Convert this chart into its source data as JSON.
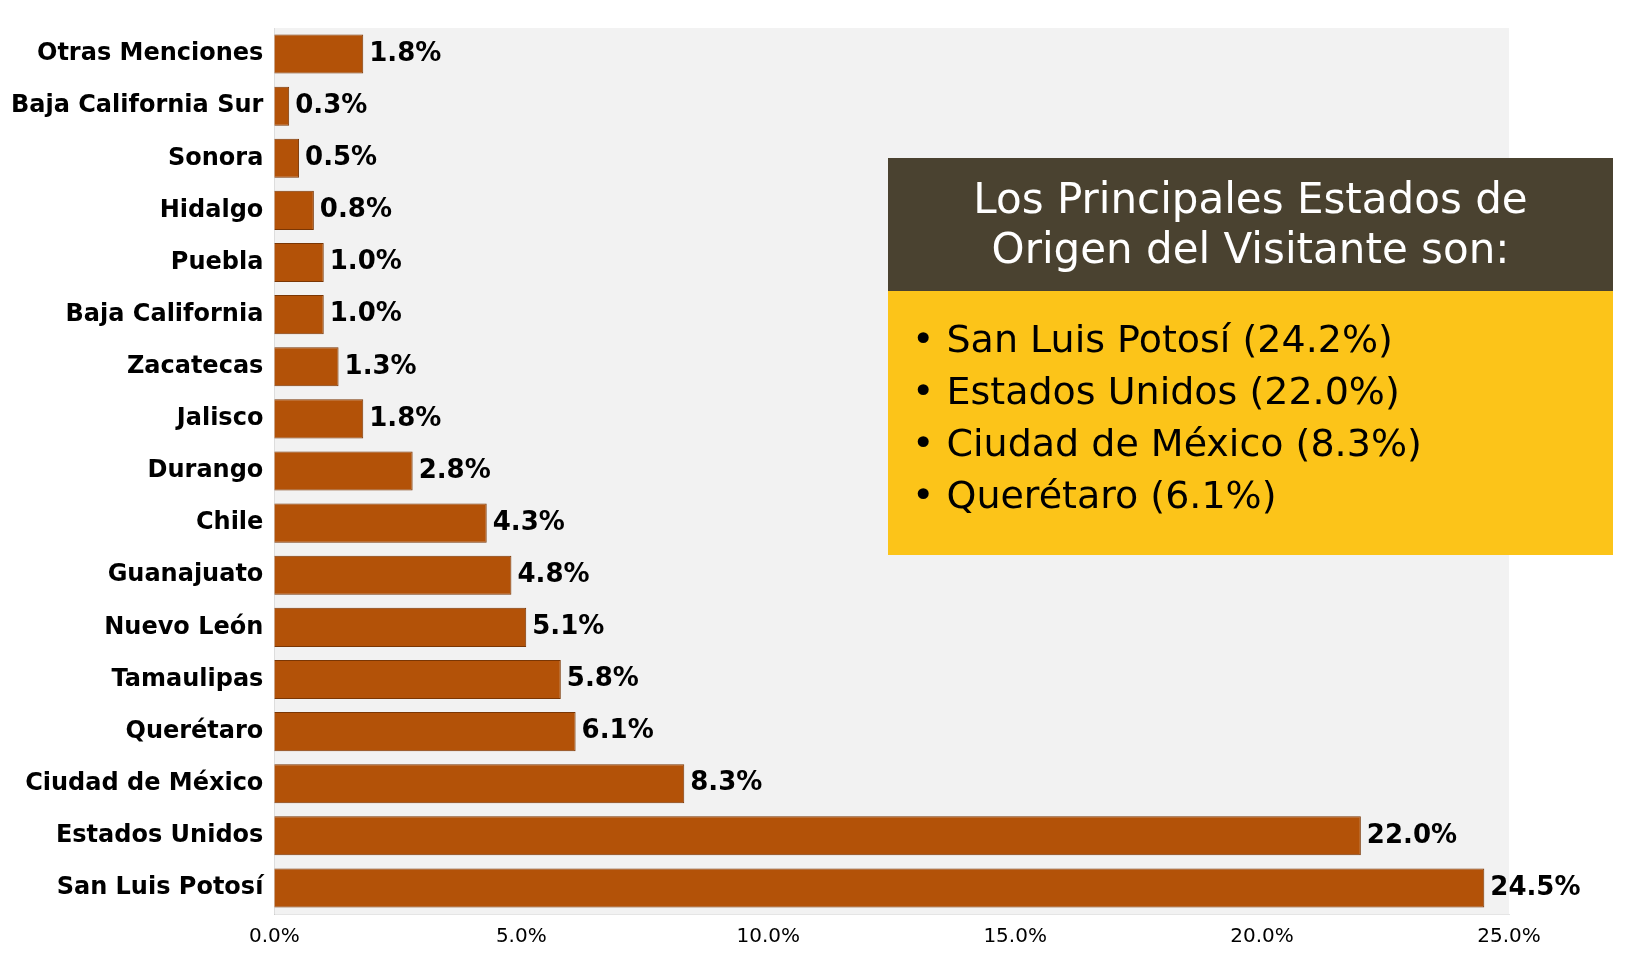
{
  "chart_data": {
    "type": "bar",
    "orientation": "horizontal",
    "categories": [
      "Otras Menciones",
      "Baja California Sur",
      "Sonora",
      "Hidalgo",
      "Puebla",
      "Baja California",
      "Zacatecas",
      "Jalisco",
      "Durango",
      "Chile",
      "Guanajuato",
      "Nuevo León",
      "Tamaulipas",
      "Querétaro",
      "Ciudad de México",
      "Estados Unidos",
      "San Luis Potosí"
    ],
    "values": [
      1.8,
      0.3,
      0.5,
      0.8,
      1.0,
      1.0,
      1.3,
      1.8,
      2.8,
      4.3,
      4.8,
      5.1,
      5.8,
      6.1,
      8.3,
      22.0,
      24.5
    ],
    "value_labels": [
      "1.8%",
      "0.3%",
      "0.5%",
      "0.8%",
      "1.0%",
      "1.0%",
      "1.3%",
      "1.8%",
      "2.8%",
      "4.3%",
      "4.8%",
      "5.1%",
      "5.8%",
      "6.1%",
      "8.3%",
      "22.0%",
      "24.5%"
    ],
    "color": "#b35208",
    "xlim": [
      0,
      25
    ],
    "xticks": [
      {
        "value": 0,
        "label": "0.0%"
      },
      {
        "value": 5,
        "label": "5.0%"
      },
      {
        "value": 10,
        "label": "10.0%"
      },
      {
        "value": 15,
        "label": "15.0%"
      },
      {
        "value": 20,
        "label": "20.0%"
      },
      {
        "value": 25,
        "label": "25.0%"
      }
    ],
    "grid": false,
    "legend": false,
    "annotations": [
      "Los Principales Estados de Origen del Visitante son:",
      "• San Luis Potosí (24.2%)",
      "• Estados Unidos (22.0%)",
      "• Ciudad de México (8.3%)",
      "• Querétaro (6.1%)"
    ]
  }
}
